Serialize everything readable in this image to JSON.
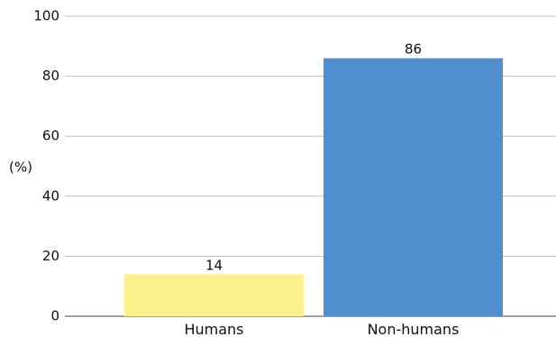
{
  "chart_data": {
    "type": "bar",
    "title": "",
    "xlabel": "",
    "ylabel": "(%)",
    "ylim": [
      0,
      100
    ],
    "yticks": [
      0,
      20,
      40,
      60,
      80,
      100
    ],
    "grid": true,
    "legend": "none",
    "categories": [
      "Humans",
      "Non-humans"
    ],
    "values": [
      14,
      86
    ],
    "colors": [
      "#fbf08a",
      "#4f8fcf"
    ]
  }
}
